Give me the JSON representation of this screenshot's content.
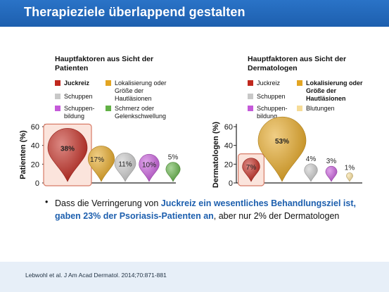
{
  "slide": {
    "title": "Therapieziele überlappend gestalten",
    "bullet": {
      "dot": "•",
      "part1": "Dass die Verringerung von ",
      "highlight": "Juckreiz ein wesentliches Behandlungsziel ist, gaben 23% der Psoriasis-Patienten an",
      "part2": ", aber nur 2% der Dermatologen"
    },
    "citation": "Lebwohl et al. J Am Acad Dermatol. 2014;70:871-881",
    "accent_color": "#1d5fae"
  },
  "chart_data": [
    {
      "type": "bubble",
      "title": "Hauptfaktoren aus Sicht der Patienten",
      "ylabel": "Patienten (%)",
      "ylim": [
        0,
        60
      ],
      "yticks": [
        0,
        20,
        40,
        60
      ],
      "legend": [
        {
          "label": "Juckreiz",
          "color": "#c0281e",
          "bold": true
        },
        {
          "label": "Lokalisierung oder Größe der Hautläsionen",
          "color": "#e3a522",
          "bold": false
        },
        {
          "label": "Schuppen",
          "color": "#c8c8c8",
          "bold": false
        },
        {
          "label": "Schmerz oder Gelenkschwellung",
          "color": "#62b146",
          "bold": false
        },
        {
          "label": "Schuppen-bildung",
          "color": "#c55ad9",
          "bold": false
        }
      ],
      "series": [
        {
          "name": "Juckreiz",
          "value": 38,
          "label": "38%",
          "color": "#c0281e",
          "highlight": true
        },
        {
          "name": "Lokalisierung oder Größe der Hautläsionen",
          "value": 17,
          "label": "17%",
          "color": "#e3a522"
        },
        {
          "name": "Schuppen",
          "value": 11,
          "label": "11%",
          "color": "#c8c8c8"
        },
        {
          "name": "Schuppenbildung",
          "value": 10,
          "label": "10%",
          "color": "#c55ad9"
        },
        {
          "name": "Schmerz oder Gelenkschwellung",
          "value": 5,
          "label": "5%",
          "color": "#62b146"
        }
      ]
    },
    {
      "type": "bubble",
      "title": "Hauptfaktoren aus Sicht der Dermatologen",
      "ylabel": "Dermatologen (%)",
      "ylim": [
        0,
        60
      ],
      "yticks": [
        0,
        20,
        40,
        60
      ],
      "legend": [
        {
          "label": "Juckreiz",
          "color": "#c0281e",
          "bold": false
        },
        {
          "label": "Lokalisierung oder Größe der Hautläsionen",
          "color": "#e3a522",
          "bold": true
        },
        {
          "label": "Schuppen",
          "color": "#c8c8c8",
          "bold": false
        },
        {
          "label": "Blutungen",
          "color": "#f6dc97",
          "bold": false
        },
        {
          "label": "Schuppen-bildung",
          "color": "#c55ad9",
          "bold": false
        }
      ],
      "series": [
        {
          "name": "Juckreiz",
          "value": 7,
          "label": "7%",
          "color": "#c0281e",
          "highlight": true
        },
        {
          "name": "Lokalisierung oder Größe der Hautläsionen",
          "value": 53,
          "label": "53%",
          "color": "#e3a522"
        },
        {
          "name": "Schuppen",
          "value": 4,
          "label": "4%",
          "color": "#c8c8c8"
        },
        {
          "name": "Schuppenbildung",
          "value": 3,
          "label": "3%",
          "color": "#c55ad9"
        },
        {
          "name": "Blutungen",
          "value": 1,
          "label": "1%",
          "color": "#f6dc97"
        }
      ]
    }
  ]
}
